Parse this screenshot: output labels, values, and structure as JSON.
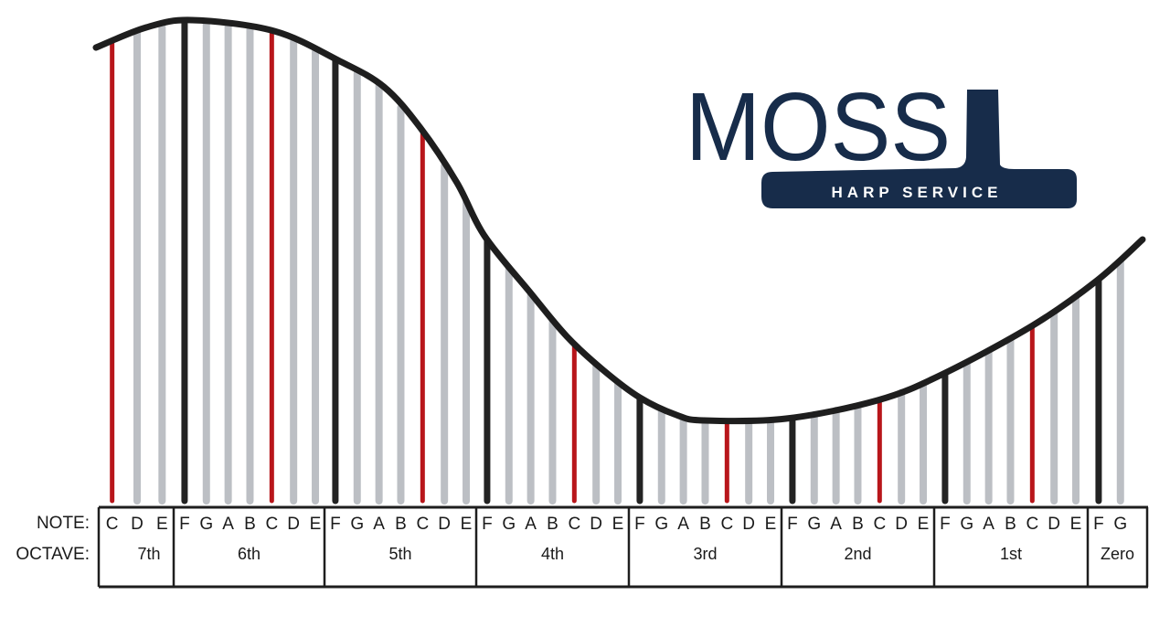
{
  "labels": {
    "note": "NOTE:",
    "octave": "OCTAVE:"
  },
  "octaves": [
    {
      "label": "7th",
      "notes": [
        "C",
        "D",
        "E"
      ]
    },
    {
      "label": "6th",
      "notes": [
        "F",
        "G",
        "A",
        "B",
        "C",
        "D",
        "E"
      ]
    },
    {
      "label": "5th",
      "notes": [
        "F",
        "G",
        "A",
        "B",
        "C",
        "D",
        "E"
      ]
    },
    {
      "label": "4th",
      "notes": [
        "F",
        "G",
        "A",
        "B",
        "C",
        "D",
        "E"
      ]
    },
    {
      "label": "3rd",
      "notes": [
        "F",
        "G",
        "A",
        "B",
        "C",
        "D",
        "E"
      ]
    },
    {
      "label": "2nd",
      "notes": [
        "F",
        "G",
        "A",
        "B",
        "C",
        "D",
        "E"
      ]
    },
    {
      "label": "1st",
      "notes": [
        "F",
        "G",
        "A",
        "B",
        "C",
        "D",
        "E"
      ]
    },
    {
      "label": "Zero",
      "notes": [
        "F",
        "G"
      ]
    }
  ],
  "string_colors": {
    "C": "#b8161b",
    "F": "#232323",
    "other": "#bcbfc4"
  },
  "logo": {
    "name": "MOSS",
    "tagline": "HARP SERVICE",
    "color": "#172c4a"
  }
}
